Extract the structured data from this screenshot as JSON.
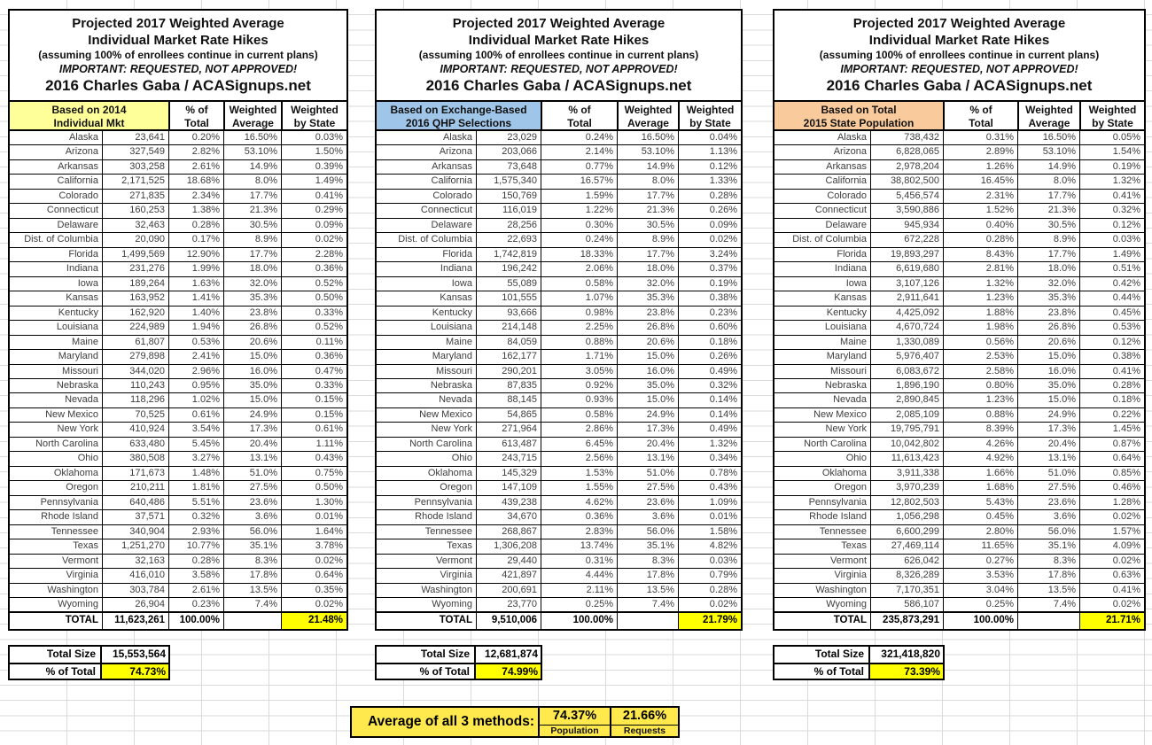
{
  "title": {
    "line1": "Projected 2017 Weighted Average",
    "line2": "Individual Market Rate Hikes",
    "line3": "(assuming 100% of enrollees continue in current plans)",
    "line4": "IMPORTANT: REQUESTED, NOT APPROVED!",
    "line5": "2016 Charles Gaba / ACASignups.net"
  },
  "columns": {
    "pct": [
      "% of",
      "Total"
    ],
    "wavg": [
      "Weighted",
      "Average"
    ],
    "wstate": [
      "Weighted",
      "by State"
    ]
  },
  "colors": {
    "basis_2014_individual_mkt": "#FFFF99",
    "basis_2016_qhp_selections": "#9FC5E8",
    "basis_2015_state_population": "#F9CB9C",
    "highlight_yellow": "#FFFF00",
    "footer_yellow": "#FFE94D"
  },
  "tables": [
    {
      "name": "individual-market",
      "label": [
        "Based on 2014",
        "Individual Mkt"
      ],
      "header_color": "#FFFF99",
      "rows": [
        [
          "Alaska",
          "23,641",
          "0.20%",
          "16.50%",
          "0.03%"
        ],
        [
          "Arizona",
          "327,549",
          "2.82%",
          "53.10%",
          "1.50%"
        ],
        [
          "Arkansas",
          "303,258",
          "2.61%",
          "14.9%",
          "0.39%"
        ],
        [
          "California",
          "2,171,525",
          "18.68%",
          "8.0%",
          "1.49%"
        ],
        [
          "Colorado",
          "271,835",
          "2.34%",
          "17.7%",
          "0.41%"
        ],
        [
          "Connecticut",
          "160,253",
          "1.38%",
          "21.3%",
          "0.29%"
        ],
        [
          "Delaware",
          "32,463",
          "0.28%",
          "30.5%",
          "0.09%"
        ],
        [
          "Dist. of Columbia",
          "20,090",
          "0.17%",
          "8.9%",
          "0.02%"
        ],
        [
          "Florida",
          "1,499,569",
          "12.90%",
          "17.7%",
          "2.28%"
        ],
        [
          "Indiana",
          "231,276",
          "1.99%",
          "18.0%",
          "0.36%"
        ],
        [
          "Iowa",
          "189,264",
          "1.63%",
          "32.0%",
          "0.52%"
        ],
        [
          "Kansas",
          "163,952",
          "1.41%",
          "35.3%",
          "0.50%"
        ],
        [
          "Kentucky",
          "162,920",
          "1.40%",
          "23.8%",
          "0.33%"
        ],
        [
          "Louisiana",
          "224,989",
          "1.94%",
          "26.8%",
          "0.52%"
        ],
        [
          "Maine",
          "61,807",
          "0.53%",
          "20.6%",
          "0.11%"
        ],
        [
          "Maryland",
          "279,898",
          "2.41%",
          "15.0%",
          "0.36%"
        ],
        [
          "Missouri",
          "344,020",
          "2.96%",
          "16.0%",
          "0.47%"
        ],
        [
          "Nebraska",
          "110,243",
          "0.95%",
          "35.0%",
          "0.33%"
        ],
        [
          "Nevada",
          "118,296",
          "1.02%",
          "15.0%",
          "0.15%"
        ],
        [
          "New Mexico",
          "70,525",
          "0.61%",
          "24.9%",
          "0.15%"
        ],
        [
          "New York",
          "410,924",
          "3.54%",
          "17.3%",
          "0.61%"
        ],
        [
          "North Carolina",
          "633,480",
          "5.45%",
          "20.4%",
          "1.11%"
        ],
        [
          "Ohio",
          "380,508",
          "3.27%",
          "13.1%",
          "0.43%"
        ],
        [
          "Oklahoma",
          "171,673",
          "1.48%",
          "51.0%",
          "0.75%"
        ],
        [
          "Oregon",
          "210,211",
          "1.81%",
          "27.5%",
          "0.50%"
        ],
        [
          "Pennsylvania",
          "640,486",
          "5.51%",
          "23.6%",
          "1.30%"
        ],
        [
          "Rhode Island",
          "37,571",
          "0.32%",
          "3.6%",
          "0.01%"
        ],
        [
          "Tennessee",
          "340,904",
          "2.93%",
          "56.0%",
          "1.64%"
        ],
        [
          "Texas",
          "1,251,270",
          "10.77%",
          "35.1%",
          "3.78%"
        ],
        [
          "Vermont",
          "32,163",
          "0.28%",
          "8.3%",
          "0.02%"
        ],
        [
          "Virginia",
          "416,010",
          "3.58%",
          "17.8%",
          "0.64%"
        ],
        [
          "Washington",
          "303,784",
          "2.61%",
          "13.5%",
          "0.35%"
        ],
        [
          "Wyoming",
          "26,904",
          "0.23%",
          "7.4%",
          "0.02%"
        ]
      ],
      "total": [
        "TOTAL",
        "11,623,261",
        "100.00%",
        "",
        "21.48%"
      ],
      "summary": {
        "size_label": "Total Size",
        "size_value": "15,553,564",
        "pct_label": "% of Total",
        "pct_value": "74.73%"
      }
    },
    {
      "name": "qhp-selections",
      "label": [
        "Based on Exchange-Based",
        "2016 QHP Selections"
      ],
      "header_color": "#9FC5E8",
      "rows": [
        [
          "Alaska",
          "23,029",
          "0.24%",
          "16.50%",
          "0.04%"
        ],
        [
          "Arizona",
          "203,066",
          "2.14%",
          "53.10%",
          "1.13%"
        ],
        [
          "Arkansas",
          "73,648",
          "0.77%",
          "14.9%",
          "0.12%"
        ],
        [
          "California",
          "1,575,340",
          "16.57%",
          "8.0%",
          "1.33%"
        ],
        [
          "Colorado",
          "150,769",
          "1.59%",
          "17.7%",
          "0.28%"
        ],
        [
          "Connecticut",
          "116,019",
          "1.22%",
          "21.3%",
          "0.26%"
        ],
        [
          "Delaware",
          "28,256",
          "0.30%",
          "30.5%",
          "0.09%"
        ],
        [
          "Dist. of Columbia",
          "22,693",
          "0.24%",
          "8.9%",
          "0.02%"
        ],
        [
          "Florida",
          "1,742,819",
          "18.33%",
          "17.7%",
          "3.24%"
        ],
        [
          "Indiana",
          "196,242",
          "2.06%",
          "18.0%",
          "0.37%"
        ],
        [
          "Iowa",
          "55,089",
          "0.58%",
          "32.0%",
          "0.19%"
        ],
        [
          "Kansas",
          "101,555",
          "1.07%",
          "35.3%",
          "0.38%"
        ],
        [
          "Kentucky",
          "93,666",
          "0.98%",
          "23.8%",
          "0.23%"
        ],
        [
          "Louisiana",
          "214,148",
          "2.25%",
          "26.8%",
          "0.60%"
        ],
        [
          "Maine",
          "84,059",
          "0.88%",
          "20.6%",
          "0.18%"
        ],
        [
          "Maryland",
          "162,177",
          "1.71%",
          "15.0%",
          "0.26%"
        ],
        [
          "Missouri",
          "290,201",
          "3.05%",
          "16.0%",
          "0.49%"
        ],
        [
          "Nebraska",
          "87,835",
          "0.92%",
          "35.0%",
          "0.32%"
        ],
        [
          "Nevada",
          "88,145",
          "0.93%",
          "15.0%",
          "0.14%"
        ],
        [
          "New Mexico",
          "54,865",
          "0.58%",
          "24.9%",
          "0.14%"
        ],
        [
          "New York",
          "271,964",
          "2.86%",
          "17.3%",
          "0.49%"
        ],
        [
          "North Carolina",
          "613,487",
          "6.45%",
          "20.4%",
          "1.32%"
        ],
        [
          "Ohio",
          "243,715",
          "2.56%",
          "13.1%",
          "0.34%"
        ],
        [
          "Oklahoma",
          "145,329",
          "1.53%",
          "51.0%",
          "0.78%"
        ],
        [
          "Oregon",
          "147,109",
          "1.55%",
          "27.5%",
          "0.43%"
        ],
        [
          "Pennsylvania",
          "439,238",
          "4.62%",
          "23.6%",
          "1.09%"
        ],
        [
          "Rhode Island",
          "34,670",
          "0.36%",
          "3.6%",
          "0.01%"
        ],
        [
          "Tennessee",
          "268,867",
          "2.83%",
          "56.0%",
          "1.58%"
        ],
        [
          "Texas",
          "1,306,208",
          "13.74%",
          "35.1%",
          "4.82%"
        ],
        [
          "Vermont",
          "29,440",
          "0.31%",
          "8.3%",
          "0.03%"
        ],
        [
          "Virginia",
          "421,897",
          "4.44%",
          "17.8%",
          "0.79%"
        ],
        [
          "Washington",
          "200,691",
          "2.11%",
          "13.5%",
          "0.28%"
        ],
        [
          "Wyoming",
          "23,770",
          "0.25%",
          "7.4%",
          "0.02%"
        ]
      ],
      "total": [
        "TOTAL",
        "9,510,006",
        "100.00%",
        "",
        "21.79%"
      ],
      "summary": {
        "size_label": "Total Size",
        "size_value": "12,681,874",
        "pct_label": "% of Total",
        "pct_value": "74.99%"
      }
    },
    {
      "name": "state-population",
      "label": [
        "Based on Total",
        "2015 State Population"
      ],
      "header_color": "#F9CB9C",
      "rows": [
        [
          "Alaska",
          "738,432",
          "0.31%",
          "16.50%",
          "0.05%"
        ],
        [
          "Arizona",
          "6,828,065",
          "2.89%",
          "53.10%",
          "1.54%"
        ],
        [
          "Arkansas",
          "2,978,204",
          "1.26%",
          "14.9%",
          "0.19%"
        ],
        [
          "California",
          "38,802,500",
          "16.45%",
          "8.0%",
          "1.32%"
        ],
        [
          "Colorado",
          "5,456,574",
          "2.31%",
          "17.7%",
          "0.41%"
        ],
        [
          "Connecticut",
          "3,590,886",
          "1.52%",
          "21.3%",
          "0.32%"
        ],
        [
          "Delaware",
          "945,934",
          "0.40%",
          "30.5%",
          "0.12%"
        ],
        [
          "Dist. of Columbia",
          "672,228",
          "0.28%",
          "8.9%",
          "0.03%"
        ],
        [
          "Florida",
          "19,893,297",
          "8.43%",
          "17.7%",
          "1.49%"
        ],
        [
          "Indiana",
          "6,619,680",
          "2.81%",
          "18.0%",
          "0.51%"
        ],
        [
          "Iowa",
          "3,107,126",
          "1.32%",
          "32.0%",
          "0.42%"
        ],
        [
          "Kansas",
          "2,911,641",
          "1.23%",
          "35.3%",
          "0.44%"
        ],
        [
          "Kentucky",
          "4,425,092",
          "1.88%",
          "23.8%",
          "0.45%"
        ],
        [
          "Louisiana",
          "4,670,724",
          "1.98%",
          "26.8%",
          "0.53%"
        ],
        [
          "Maine",
          "1,330,089",
          "0.56%",
          "20.6%",
          "0.12%"
        ],
        [
          "Maryland",
          "5,976,407",
          "2.53%",
          "15.0%",
          "0.38%"
        ],
        [
          "Missouri",
          "6,083,672",
          "2.58%",
          "16.0%",
          "0.41%"
        ],
        [
          "Nebraska",
          "1,896,190",
          "0.80%",
          "35.0%",
          "0.28%"
        ],
        [
          "Nevada",
          "2,890,845",
          "1.23%",
          "15.0%",
          "0.18%"
        ],
        [
          "New Mexico",
          "2,085,109",
          "0.88%",
          "24.9%",
          "0.22%"
        ],
        [
          "New York",
          "19,795,791",
          "8.39%",
          "17.3%",
          "1.45%"
        ],
        [
          "North Carolina",
          "10,042,802",
          "4.26%",
          "20.4%",
          "0.87%"
        ],
        [
          "Ohio",
          "11,613,423",
          "4.92%",
          "13.1%",
          "0.64%"
        ],
        [
          "Oklahoma",
          "3,911,338",
          "1.66%",
          "51.0%",
          "0.85%"
        ],
        [
          "Oregon",
          "3,970,239",
          "1.68%",
          "27.5%",
          "0.46%"
        ],
        [
          "Pennsylvania",
          "12,802,503",
          "5.43%",
          "23.6%",
          "1.28%"
        ],
        [
          "Rhode Island",
          "1,056,298",
          "0.45%",
          "3.6%",
          "0.02%"
        ],
        [
          "Tennessee",
          "6,600,299",
          "2.80%",
          "56.0%",
          "1.57%"
        ],
        [
          "Texas",
          "27,469,114",
          "11.65%",
          "35.1%",
          "4.09%"
        ],
        [
          "Vermont",
          "626,042",
          "0.27%",
          "8.3%",
          "0.02%"
        ],
        [
          "Virginia",
          "8,326,289",
          "3.53%",
          "17.8%",
          "0.63%"
        ],
        [
          "Washington",
          "7,170,351",
          "3.04%",
          "13.5%",
          "0.41%"
        ],
        [
          "Wyoming",
          "586,107",
          "0.25%",
          "7.4%",
          "0.02%"
        ]
      ],
      "total": [
        "TOTAL",
        "235,873,291",
        "100.00%",
        "",
        "21.71%"
      ],
      "summary": {
        "size_label": "Total Size",
        "size_value": "321,418,820",
        "pct_label": "% of Total",
        "pct_value": "73.39%"
      }
    }
  ],
  "footer": {
    "label": "Average of all 3 methods:",
    "population_value": "74.37%",
    "population_label": "Population",
    "requests_value": "21.66%",
    "requests_label": "Requests"
  }
}
